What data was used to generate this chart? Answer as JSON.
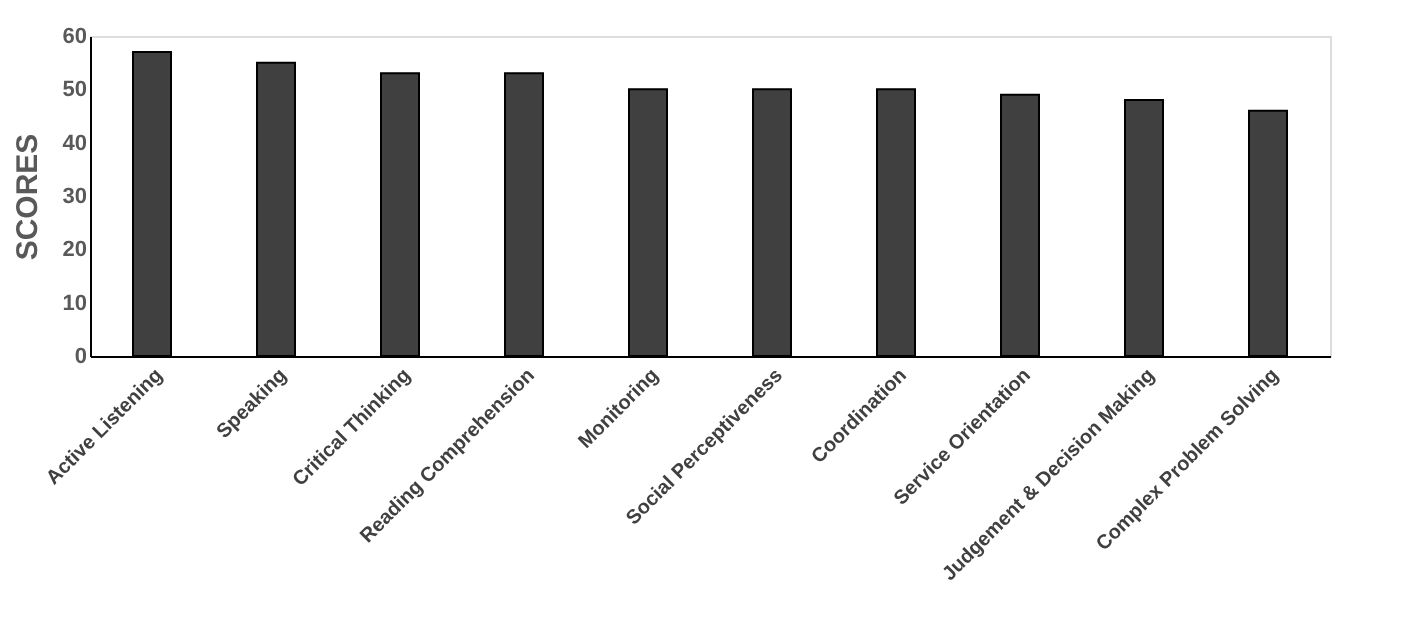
{
  "chart_data": {
    "type": "bar",
    "ylabel": "SCORES",
    "categories": [
      "Active Listening",
      "Speaking",
      "Critical Thinking",
      "Reading Comprehension",
      "Monitoring",
      "Social Perceptiveness",
      "Coordination",
      "Service Orientation",
      "Judgement & Decision Making",
      "Complex Problem Solving"
    ],
    "values": [
      57,
      55,
      53,
      53,
      50,
      50,
      50,
      49,
      48,
      46
    ],
    "color": "#404040",
    "ylim": [
      0,
      60
    ],
    "yticks": [
      0,
      10,
      20,
      30,
      40,
      50,
      60
    ],
    "grid": false
  }
}
